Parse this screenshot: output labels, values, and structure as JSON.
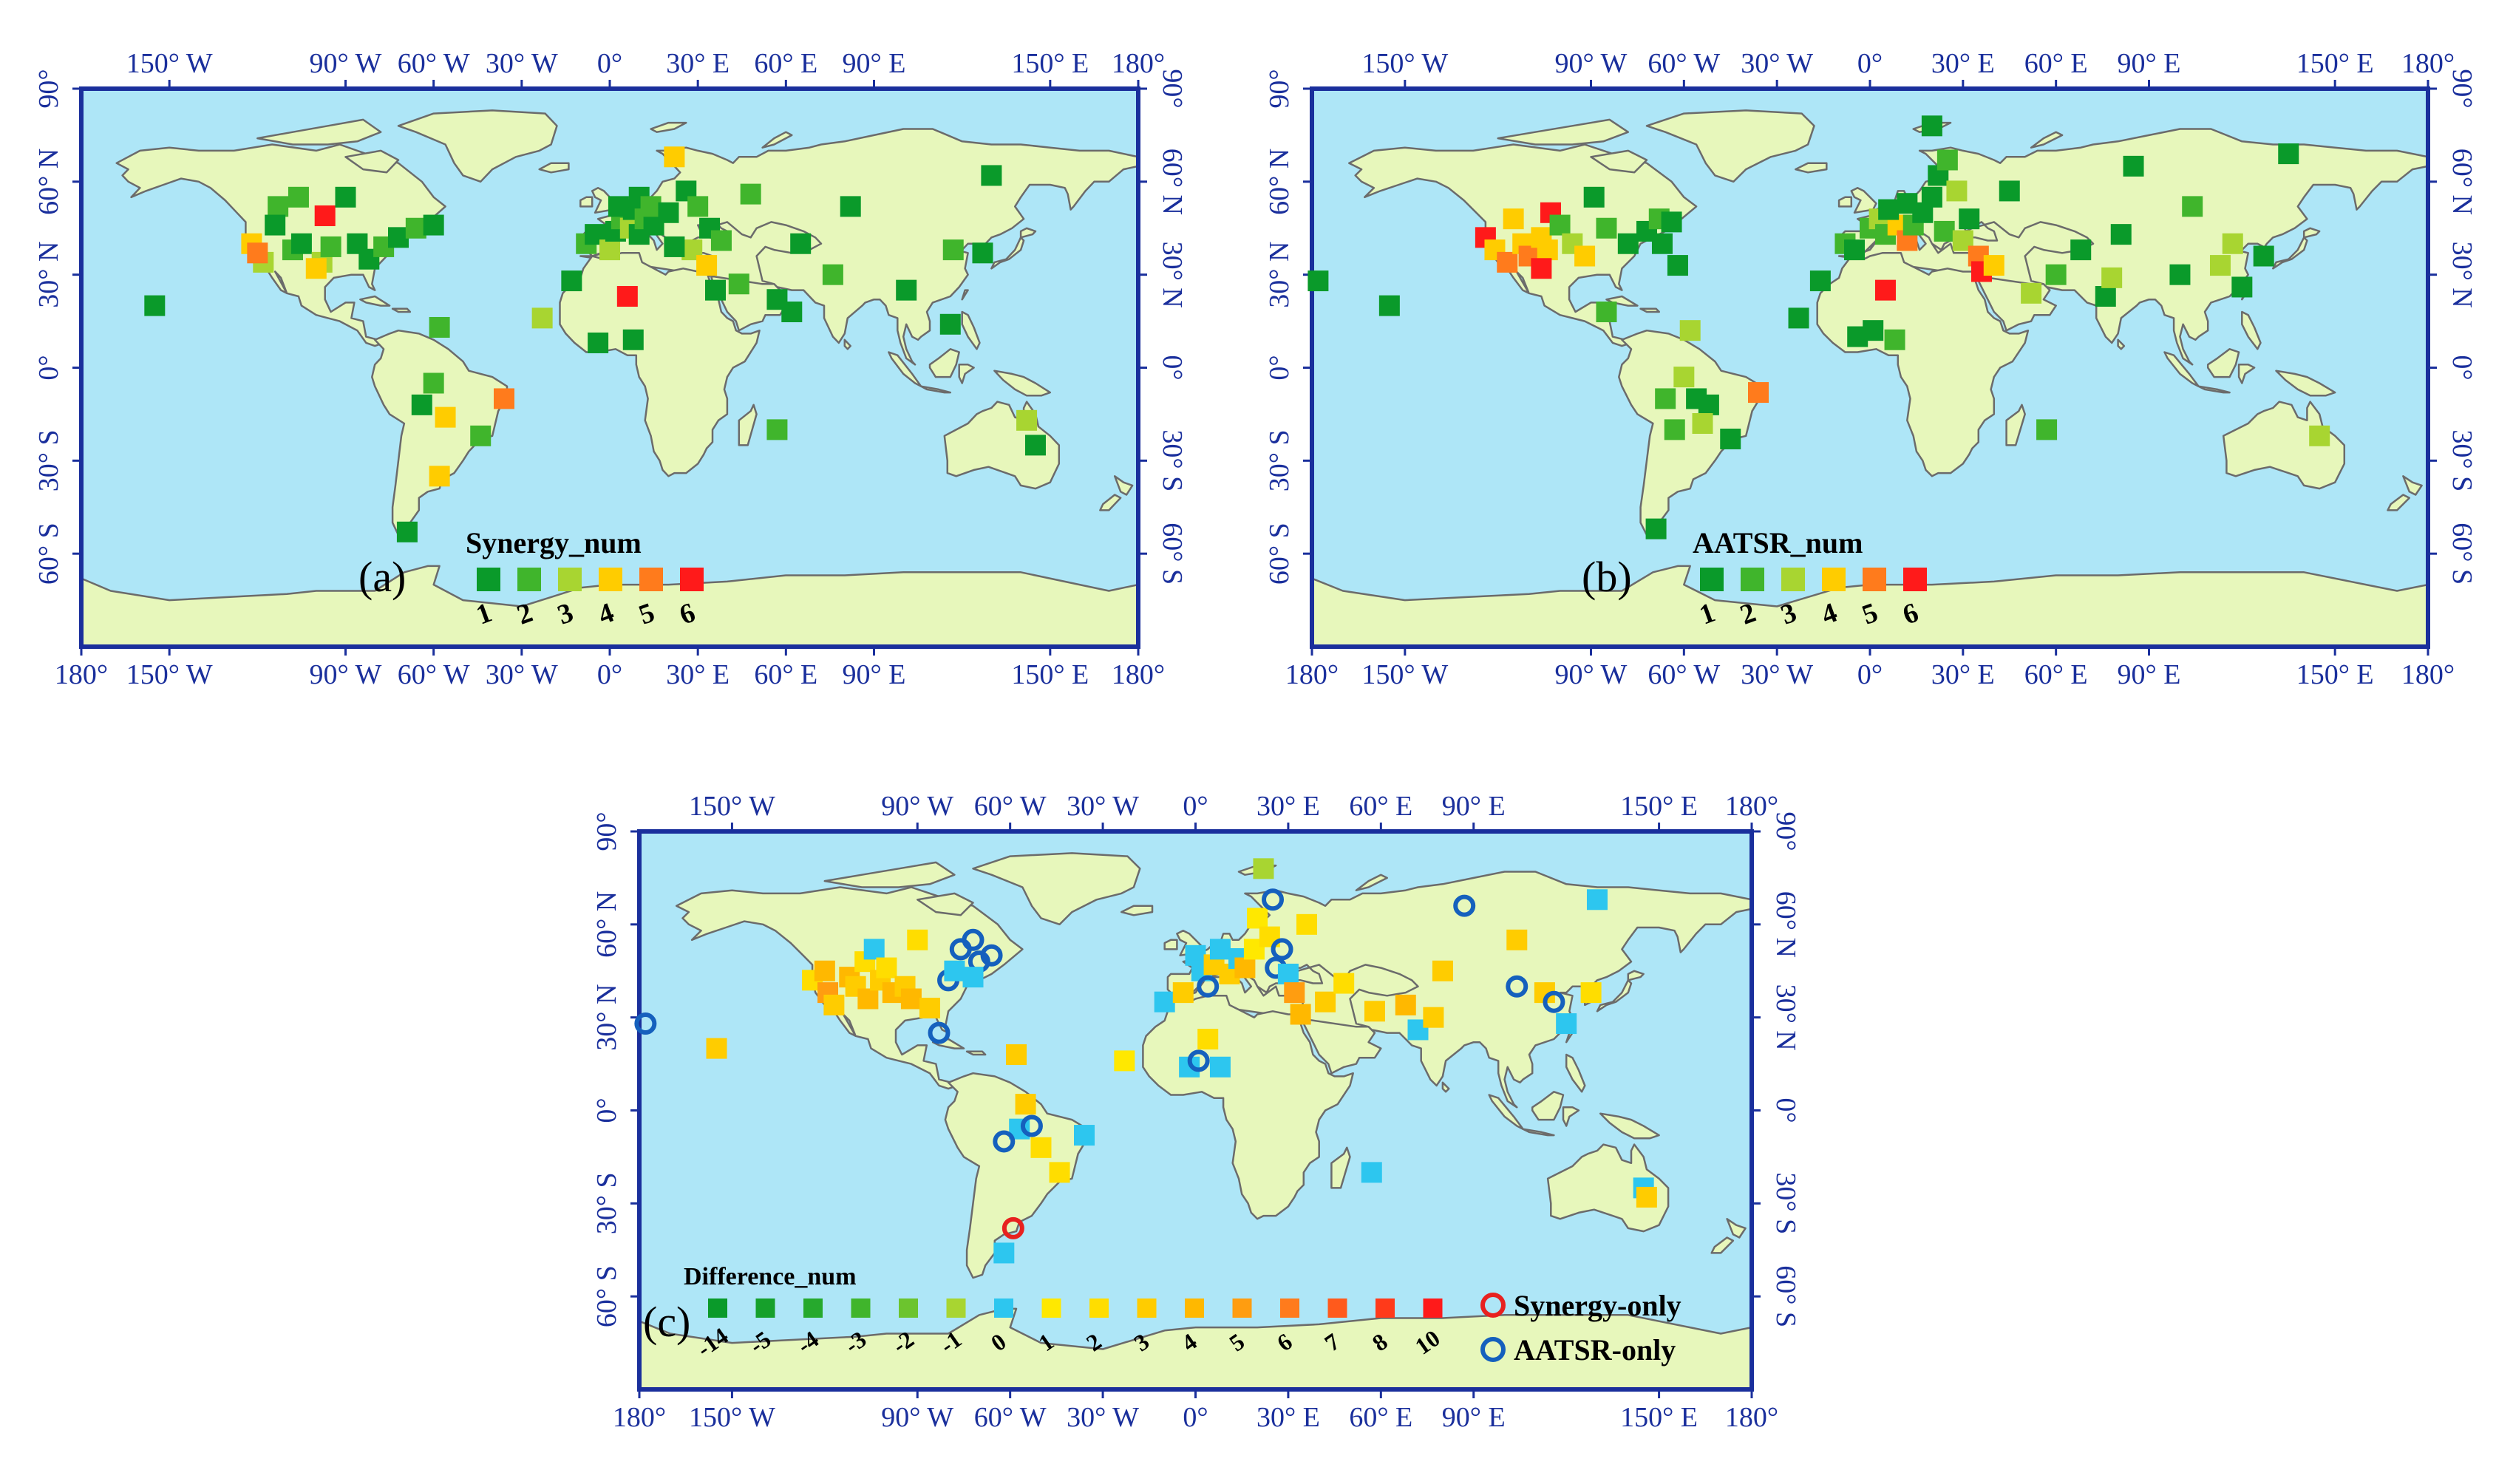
{
  "figure": {
    "panels": [
      {
        "id": "a",
        "label": "(a)",
        "legend_title": "Synergy_num",
        "legend_levels": [
          "1",
          "2",
          "3",
          "4",
          "5",
          "6"
        ],
        "legend_colors": [
          "#0a9a2a",
          "#40b52c",
          "#a8d531",
          "#ffcc00",
          "#ff7b1c",
          "#ff1a1a"
        ]
      },
      {
        "id": "b",
        "label": "(b)",
        "legend_title": "AATSR_num",
        "legend_levels": [
          "1",
          "2",
          "3",
          "4",
          "5",
          "6"
        ],
        "legend_colors": [
          "#0a9a2a",
          "#40b52c",
          "#a8d531",
          "#ffcc00",
          "#ff7b1c",
          "#ff1a1a"
        ]
      },
      {
        "id": "c",
        "label": "(c)",
        "legend_title": "Difference_num",
        "legend_levels": [
          "-14",
          "-5",
          "-4",
          "-3",
          "-2",
          "-1",
          "0",
          "1",
          "2",
          "3",
          "4",
          "5",
          "6",
          "7",
          "8",
          "10"
        ],
        "legend_colors": [
          "#0a9a2a",
          "#16a02b",
          "#26a92d",
          "#40b52c",
          "#6cc42e",
          "#a8d531",
          "#2dc6ef",
          "#ffe800",
          "#ffdd00",
          "#ffcc00",
          "#ffb800",
          "#ff9d10",
          "#ff7b1c",
          "#ff5a1c",
          "#ff3a1a",
          "#ff1a1a"
        ],
        "marker_legend": [
          {
            "label": "Synergy-only",
            "color": "#e8211f"
          },
          {
            "label": "AATSR-only",
            "color": "#1560bd"
          }
        ]
      }
    ],
    "axes": {
      "top_lon_labels": [
        "150° W",
        "90° W",
        "60° W",
        "30° W",
        "0°",
        "30° E",
        "60° E",
        "90° E",
        "150° E",
        "180°"
      ],
      "bottom_lon_labels": [
        "180°",
        "150° W",
        "90° W",
        "60° W",
        "30° W",
        "0°",
        "30° E",
        "60° E",
        "90° E",
        "150° E",
        "180°"
      ],
      "left_lat_labels": [
        "90°",
        "60° N",
        "30° N",
        "0°",
        "30° S",
        "60° S"
      ],
      "right_lat_labels": [
        "90°",
        "60° N",
        "30° N",
        "0°",
        "30° S",
        "60° S"
      ]
    },
    "colors": {
      "ocean": "#aee6f7",
      "land": "#e7f7bb",
      "border": "#6b6b6b",
      "frame": "#1a2f9c",
      "tick_text": "#1a2f9c"
    },
    "stations_a": [
      {
        "lon": -155,
        "lat": 20,
        "v": 1
      },
      {
        "lon": -122,
        "lat": 40,
        "v": 4
      },
      {
        "lon": -118,
        "lat": 34,
        "v": 3
      },
      {
        "lon": -120,
        "lat": 37,
        "v": 5
      },
      {
        "lon": -113,
        "lat": 52,
        "v": 2
      },
      {
        "lon": -114,
        "lat": 46,
        "v": 1
      },
      {
        "lon": -108,
        "lat": 38,
        "v": 2
      },
      {
        "lon": -105,
        "lat": 40,
        "v": 1
      },
      {
        "lon": -106,
        "lat": 55,
        "v": 2
      },
      {
        "lon": -97,
        "lat": 49,
        "v": 6
      },
      {
        "lon": -98,
        "lat": 34,
        "v": 3
      },
      {
        "lon": -100,
        "lat": 32,
        "v": 4
      },
      {
        "lon": -95,
        "lat": 39,
        "v": 2
      },
      {
        "lon": -90,
        "lat": 55,
        "v": 1
      },
      {
        "lon": -86,
        "lat": 40,
        "v": 1
      },
      {
        "lon": -82,
        "lat": 35,
        "v": 1
      },
      {
        "lon": -77,
        "lat": 39,
        "v": 2
      },
      {
        "lon": -72,
        "lat": 42,
        "v": 1
      },
      {
        "lon": -66,
        "lat": 45,
        "v": 2
      },
      {
        "lon": -60,
        "lat": 46,
        "v": 1
      },
      {
        "lon": -58,
        "lat": 13,
        "v": 2
      },
      {
        "lon": -60,
        "lat": -5,
        "v": 2
      },
      {
        "lon": -64,
        "lat": -12,
        "v": 1
      },
      {
        "lon": -56,
        "lat": -16,
        "v": 4
      },
      {
        "lon": -44,
        "lat": -22,
        "v": 2
      },
      {
        "lon": -36,
        "lat": -10,
        "v": 5
      },
      {
        "lon": -58,
        "lat": -35,
        "v": 4
      },
      {
        "lon": -69,
        "lat": -53,
        "v": 1
      },
      {
        "lon": -23,
        "lat": 16,
        "v": 3
      },
      {
        "lon": -4,
        "lat": 8,
        "v": 1
      },
      {
        "lon": 8,
        "lat": 9,
        "v": 1
      },
      {
        "lon": -13,
        "lat": 28,
        "v": 1
      },
      {
        "lon": 6,
        "lat": 23,
        "v": 6
      },
      {
        "lon": -8,
        "lat": 40,
        "v": 2
      },
      {
        "lon": -5,
        "lat": 43,
        "v": 1
      },
      {
        "lon": 0,
        "lat": 38,
        "v": 3
      },
      {
        "lon": 2,
        "lat": 44,
        "v": 1
      },
      {
        "lon": 4,
        "lat": 48,
        "v": 2
      },
      {
        "lon": 7,
        "lat": 45,
        "v": 3
      },
      {
        "lon": 10,
        "lat": 43,
        "v": 1
      },
      {
        "lon": 8,
        "lat": 51,
        "v": 1
      },
      {
        "lon": 12,
        "lat": 48,
        "v": 2
      },
      {
        "lon": 15,
        "lat": 46,
        "v": 1
      },
      {
        "lon": 3,
        "lat": 52,
        "v": 1
      },
      {
        "lon": 10,
        "lat": 55,
        "v": 1
      },
      {
        "lon": 14,
        "lat": 52,
        "v": 2
      },
      {
        "lon": 20,
        "lat": 50,
        "v": 1
      },
      {
        "lon": 26,
        "lat": 57,
        "v": 1
      },
      {
        "lon": 30,
        "lat": 52,
        "v": 2
      },
      {
        "lon": 22,
        "lat": 68,
        "v": 4
      },
      {
        "lon": 34,
        "lat": 45,
        "v": 1
      },
      {
        "lon": 38,
        "lat": 41,
        "v": 2
      },
      {
        "lon": 28,
        "lat": 38,
        "v": 3
      },
      {
        "lon": 22,
        "lat": 39,
        "v": 1
      },
      {
        "lon": 33,
        "lat": 33,
        "v": 4
      },
      {
        "lon": 36,
        "lat": 25,
        "v": 1
      },
      {
        "lon": 44,
        "lat": 27,
        "v": 2
      },
      {
        "lon": 57,
        "lat": 22,
        "v": 1
      },
      {
        "lon": 62,
        "lat": 18,
        "v": 1
      },
      {
        "lon": 48,
        "lat": 56,
        "v": 2
      },
      {
        "lon": 65,
        "lat": 40,
        "v": 1
      },
      {
        "lon": 76,
        "lat": 30,
        "v": 2
      },
      {
        "lon": 82,
        "lat": 52,
        "v": 1
      },
      {
        "lon": 101,
        "lat": 25,
        "v": 1
      },
      {
        "lon": 117,
        "lat": 38,
        "v": 2
      },
      {
        "lon": 127,
        "lat": 37,
        "v": 1
      },
      {
        "lon": 130,
        "lat": 62,
        "v": 1
      },
      {
        "lon": 116,
        "lat": 14,
        "v": 1
      },
      {
        "lon": 57,
        "lat": -20,
        "v": 2
      },
      {
        "lon": 142,
        "lat": -17,
        "v": 3
      },
      {
        "lon": 145,
        "lat": -25,
        "v": 1
      }
    ],
    "stations_b": [
      {
        "lon": -155,
        "lat": 20,
        "v": 1
      },
      {
        "lon": -178,
        "lat": 28,
        "v": 1
      },
      {
        "lon": -124,
        "lat": 42,
        "v": 6
      },
      {
        "lon": -121,
        "lat": 38,
        "v": 4
      },
      {
        "lon": -117,
        "lat": 34,
        "v": 5
      },
      {
        "lon": -115,
        "lat": 48,
        "v": 4
      },
      {
        "lon": -112,
        "lat": 40,
        "v": 4
      },
      {
        "lon": -110,
        "lat": 36,
        "v": 5
      },
      {
        "lon": -106,
        "lat": 42,
        "v": 4
      },
      {
        "lon": -104,
        "lat": 38,
        "v": 4
      },
      {
        "lon": -106,
        "lat": 32,
        "v": 6
      },
      {
        "lon": -103,
        "lat": 50,
        "v": 6
      },
      {
        "lon": -100,
        "lat": 46,
        "v": 2
      },
      {
        "lon": -96,
        "lat": 40,
        "v": 3
      },
      {
        "lon": -92,
        "lat": 36,
        "v": 4
      },
      {
        "lon": -89,
        "lat": 55,
        "v": 1
      },
      {
        "lon": -85,
        "lat": 45,
        "v": 2
      },
      {
        "lon": -78,
        "lat": 40,
        "v": 1
      },
      {
        "lon": -72,
        "lat": 44,
        "v": 1
      },
      {
        "lon": -68,
        "lat": 48,
        "v": 2
      },
      {
        "lon": -67,
        "lat": 40,
        "v": 1
      },
      {
        "lon": -64,
        "lat": 47,
        "v": 1
      },
      {
        "lon": -62,
        "lat": 33,
        "v": 1
      },
      {
        "lon": -85,
        "lat": 18,
        "v": 2
      },
      {
        "lon": -58,
        "lat": 12,
        "v": 3
      },
      {
        "lon": -60,
        "lat": -3,
        "v": 3
      },
      {
        "lon": -66,
        "lat": -10,
        "v": 2
      },
      {
        "lon": -56,
        "lat": -10,
        "v": 1
      },
      {
        "lon": -52,
        "lat": -12,
        "v": 1
      },
      {
        "lon": -54,
        "lat": -18,
        "v": 3
      },
      {
        "lon": -63,
        "lat": -20,
        "v": 2
      },
      {
        "lon": -45,
        "lat": -23,
        "v": 1
      },
      {
        "lon": -36,
        "lat": -8,
        "v": 5
      },
      {
        "lon": -69,
        "lat": -52,
        "v": 1
      },
      {
        "lon": -23,
        "lat": 16,
        "v": 1
      },
      {
        "lon": -16,
        "lat": 28,
        "v": 1
      },
      {
        "lon": -4,
        "lat": 10,
        "v": 1
      },
      {
        "lon": 5,
        "lat": 25,
        "v": 6
      },
      {
        "lon": 1,
        "lat": 12,
        "v": 1
      },
      {
        "lon": 8,
        "lat": 9,
        "v": 2
      },
      {
        "lon": -8,
        "lat": 40,
        "v": 2
      },
      {
        "lon": -5,
        "lat": 38,
        "v": 1
      },
      {
        "lon": 0,
        "lat": 45,
        "v": 2
      },
      {
        "lon": 3,
        "lat": 48,
        "v": 3
      },
      {
        "lon": 5,
        "lat": 43,
        "v": 2
      },
      {
        "lon": 9,
        "lat": 46,
        "v": 4
      },
      {
        "lon": 12,
        "lat": 41,
        "v": 5
      },
      {
        "lon": 14,
        "lat": 46,
        "v": 2
      },
      {
        "lon": 6,
        "lat": 51,
        "v": 1
      },
      {
        "lon": 12,
        "lat": 53,
        "v": 1
      },
      {
        "lon": 17,
        "lat": 50,
        "v": 1
      },
      {
        "lon": 20,
        "lat": 55,
        "v": 1
      },
      {
        "lon": 22,
        "lat": 62,
        "v": 1
      },
      {
        "lon": 25,
        "lat": 67,
        "v": 2
      },
      {
        "lon": 28,
        "lat": 57,
        "v": 3
      },
      {
        "lon": 24,
        "lat": 44,
        "v": 2
      },
      {
        "lon": 32,
        "lat": 48,
        "v": 1
      },
      {
        "lon": 30,
        "lat": 41,
        "v": 3
      },
      {
        "lon": 35,
        "lat": 36,
        "v": 5
      },
      {
        "lon": 36,
        "lat": 31,
        "v": 6
      },
      {
        "lon": 40,
        "lat": 33,
        "v": 4
      },
      {
        "lon": 20,
        "lat": 78,
        "v": 1
      },
      {
        "lon": 45,
        "lat": 57,
        "v": 1
      },
      {
        "lon": 52,
        "lat": 24,
        "v": 3
      },
      {
        "lon": 60,
        "lat": 30,
        "v": 2
      },
      {
        "lon": 68,
        "lat": 38,
        "v": 1
      },
      {
        "lon": 76,
        "lat": 23,
        "v": 1
      },
      {
        "lon": 78,
        "lat": 29,
        "v": 3
      },
      {
        "lon": 81,
        "lat": 43,
        "v": 1
      },
      {
        "lon": 85,
        "lat": 65,
        "v": 1
      },
      {
        "lon": 100,
        "lat": 30,
        "v": 1
      },
      {
        "lon": 104,
        "lat": 52,
        "v": 2
      },
      {
        "lon": 113,
        "lat": 33,
        "v": 3
      },
      {
        "lon": 117,
        "lat": 40,
        "v": 3
      },
      {
        "lon": 120,
        "lat": 26,
        "v": 1
      },
      {
        "lon": 127,
        "lat": 36,
        "v": 1
      },
      {
        "lon": 135,
        "lat": 69,
        "v": 1
      },
      {
        "lon": 57,
        "lat": -20,
        "v": 2
      },
      {
        "lon": 145,
        "lat": -22,
        "v": 3
      }
    ],
    "stations_c": [
      {
        "lon": -178,
        "lat": 28,
        "m": "aatsr"
      },
      {
        "lon": -155,
        "lat": 20,
        "v": 3
      },
      {
        "lon": -124,
        "lat": 42,
        "v": 2
      },
      {
        "lon": -120,
        "lat": 45,
        "v": 4
      },
      {
        "lon": -119,
        "lat": 38,
        "v": 5
      },
      {
        "lon": -117,
        "lat": 34,
        "v": 3
      },
      {
        "lon": -112,
        "lat": 43,
        "v": 4
      },
      {
        "lon": -110,
        "lat": 40,
        "v": 3
      },
      {
        "lon": -107,
        "lat": 48,
        "v": 2
      },
      {
        "lon": -106,
        "lat": 36,
        "v": 4
      },
      {
        "lon": -104,
        "lat": 52,
        "v": 0
      },
      {
        "lon": -102,
        "lat": 42,
        "v": 3
      },
      {
        "lon": -100,
        "lat": 46,
        "v": 2
      },
      {
        "lon": -98,
        "lat": 38,
        "v": 4
      },
      {
        "lon": -94,
        "lat": 40,
        "v": 3
      },
      {
        "lon": -92,
        "lat": 36,
        "v": 4
      },
      {
        "lon": -90,
        "lat": 55,
        "v": 2
      },
      {
        "lon": -86,
        "lat": 33,
        "v": 3
      },
      {
        "lon": -80,
        "lat": 42,
        "m": "aatsr"
      },
      {
        "lon": -78,
        "lat": 45,
        "v": 0
      },
      {
        "lon": -76,
        "lat": 52,
        "m": "aatsr"
      },
      {
        "lon": -72,
        "lat": 55,
        "m": "aatsr"
      },
      {
        "lon": -70,
        "lat": 48,
        "m": "aatsr"
      },
      {
        "lon": -66,
        "lat": 50,
        "m": "aatsr"
      },
      {
        "lon": -72,
        "lat": 43,
        "v": 0
      },
      {
        "lon": -83,
        "lat": 25,
        "m": "aatsr"
      },
      {
        "lon": -58,
        "lat": 18,
        "v": 3
      },
      {
        "lon": -55,
        "lat": 2,
        "v": 3
      },
      {
        "lon": -57,
        "lat": -6,
        "v": 0
      },
      {
        "lon": -53,
        "lat": -5,
        "m": "aatsr"
      },
      {
        "lon": -62,
        "lat": -10,
        "m": "aatsr"
      },
      {
        "lon": -50,
        "lat": -12,
        "v": 2
      },
      {
        "lon": -44,
        "lat": -20,
        "v": 2
      },
      {
        "lon": -36,
        "lat": -8,
        "v": 0
      },
      {
        "lon": -59,
        "lat": -38,
        "m": "synergy"
      },
      {
        "lon": -62,
        "lat": -46,
        "v": 0
      },
      {
        "lon": -23,
        "lat": 16,
        "v": 1
      },
      {
        "lon": -10,
        "lat": 35,
        "v": 0
      },
      {
        "lon": -4,
        "lat": 38,
        "v": 3
      },
      {
        "lon": -2,
        "lat": 14,
        "v": 0
      },
      {
        "lon": 1,
        "lat": 16,
        "m": "aatsr"
      },
      {
        "lon": 4,
        "lat": 23,
        "v": 2
      },
      {
        "lon": 8,
        "lat": 14,
        "v": 0
      },
      {
        "lon": 0,
        "lat": 50,
        "v": 0
      },
      {
        "lon": 2,
        "lat": 45,
        "v": 0
      },
      {
        "lon": 4,
        "lat": 40,
        "m": "aatsr"
      },
      {
        "lon": 6,
        "lat": 47,
        "v": 3
      },
      {
        "lon": 8,
        "lat": 52,
        "v": 0
      },
      {
        "lon": 11,
        "lat": 44,
        "v": 3
      },
      {
        "lon": 14,
        "lat": 49,
        "v": 0
      },
      {
        "lon": 16,
        "lat": 46,
        "v": 4
      },
      {
        "lon": 19,
        "lat": 52,
        "v": 1
      },
      {
        "lon": 20,
        "lat": 62,
        "v": 1
      },
      {
        "lon": 22,
        "lat": 78,
        "v": -1
      },
      {
        "lon": 25,
        "lat": 68,
        "m": "aatsr"
      },
      {
        "lon": 24,
        "lat": 56,
        "v": 2
      },
      {
        "lon": 26,
        "lat": 46,
        "m": "aatsr"
      },
      {
        "lon": 28,
        "lat": 52,
        "m": "aatsr"
      },
      {
        "lon": 30,
        "lat": 44,
        "v": 0
      },
      {
        "lon": 32,
        "lat": 38,
        "v": 5
      },
      {
        "lon": 34,
        "lat": 31,
        "v": 4
      },
      {
        "lon": 36,
        "lat": 60,
        "v": 2
      },
      {
        "lon": 42,
        "lat": 35,
        "v": 3
      },
      {
        "lon": 48,
        "lat": 41,
        "v": 2
      },
      {
        "lon": 58,
        "lat": 32,
        "v": 3
      },
      {
        "lon": 68,
        "lat": 34,
        "v": 4
      },
      {
        "lon": 72,
        "lat": 26,
        "v": 0
      },
      {
        "lon": 77,
        "lat": 30,
        "v": 3
      },
      {
        "lon": 80,
        "lat": 45,
        "v": 3
      },
      {
        "lon": 87,
        "lat": 66,
        "m": "aatsr"
      },
      {
        "lon": 104,
        "lat": 55,
        "v": 3
      },
      {
        "lon": 104,
        "lat": 40,
        "m": "aatsr"
      },
      {
        "lon": 113,
        "lat": 38,
        "v": 3
      },
      {
        "lon": 116,
        "lat": 35,
        "m": "aatsr"
      },
      {
        "lon": 120,
        "lat": 28,
        "v": 0
      },
      {
        "lon": 128,
        "lat": 38,
        "v": 2
      },
      {
        "lon": 130,
        "lat": 68,
        "v": 0
      },
      {
        "lon": 57,
        "lat": -20,
        "v": 0
      },
      {
        "lon": 145,
        "lat": -25,
        "v": 0
      },
      {
        "lon": 146,
        "lat": -28,
        "v": 3
      }
    ]
  }
}
